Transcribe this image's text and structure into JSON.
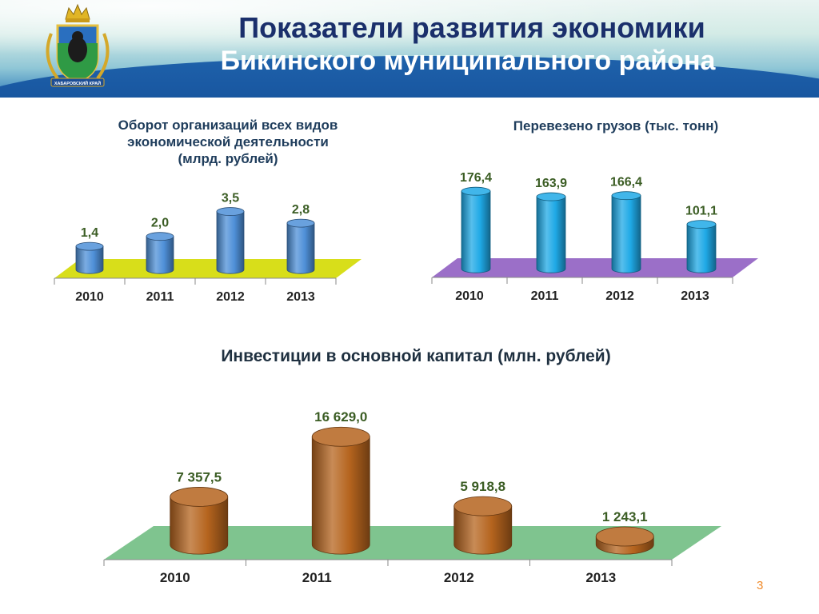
{
  "header": {
    "title_line1": "Показатели развития экономики",
    "title_line2": "Бикинского муниципального района",
    "emblem_label": "ХАБАРОВСКИЙ КРАЙ"
  },
  "colors": {
    "chart1_bar": "#4f90d8",
    "chart1_floor": "#d8de1a",
    "chart2_bar": "#1fa9e6",
    "chart2_floor": "#9b6fc8",
    "chart3_bar": "#b5641e",
    "chart3_floor": "#7fc48f",
    "value_label": "#3b5d24"
  },
  "chart_data": [
    {
      "type": "bar",
      "title": "Оборот организаций всех видов экономической деятельности (млрд. рублей)",
      "title_lines": [
        "Оборот организаций всех видов",
        "экономической деятельности",
        "(млрд. рублей)"
      ],
      "categories": [
        "2010",
        "2011",
        "2012",
        "2013"
      ],
      "values": [
        1.4,
        2.0,
        3.5,
        2.8
      ],
      "labels": [
        "1,4",
        "2,0",
        "3,5",
        "2,8"
      ],
      "ylim": [
        0,
        4.0
      ]
    },
    {
      "type": "bar",
      "title": "Перевезено грузов (тыс. тонн)",
      "categories": [
        "2010",
        "2011",
        "2012",
        "2013"
      ],
      "values": [
        176.4,
        163.9,
        166.4,
        101.1
      ],
      "labels": [
        "176,4",
        "163,9",
        "166,4",
        "101,1"
      ],
      "ylim": [
        0,
        200
      ]
    },
    {
      "type": "bar",
      "title": "Инвестиции в основной капитал (млн. рублей)",
      "categories": [
        "2010",
        "2011",
        "2012",
        "2013"
      ],
      "values": [
        7357.5,
        16629.0,
        5918.8,
        1243.1
      ],
      "labels": [
        "7 357,5",
        "16 629,0",
        "5 918,8",
        "1 243,1"
      ],
      "ylim": [
        0,
        18000
      ]
    }
  ],
  "page_number": "3"
}
